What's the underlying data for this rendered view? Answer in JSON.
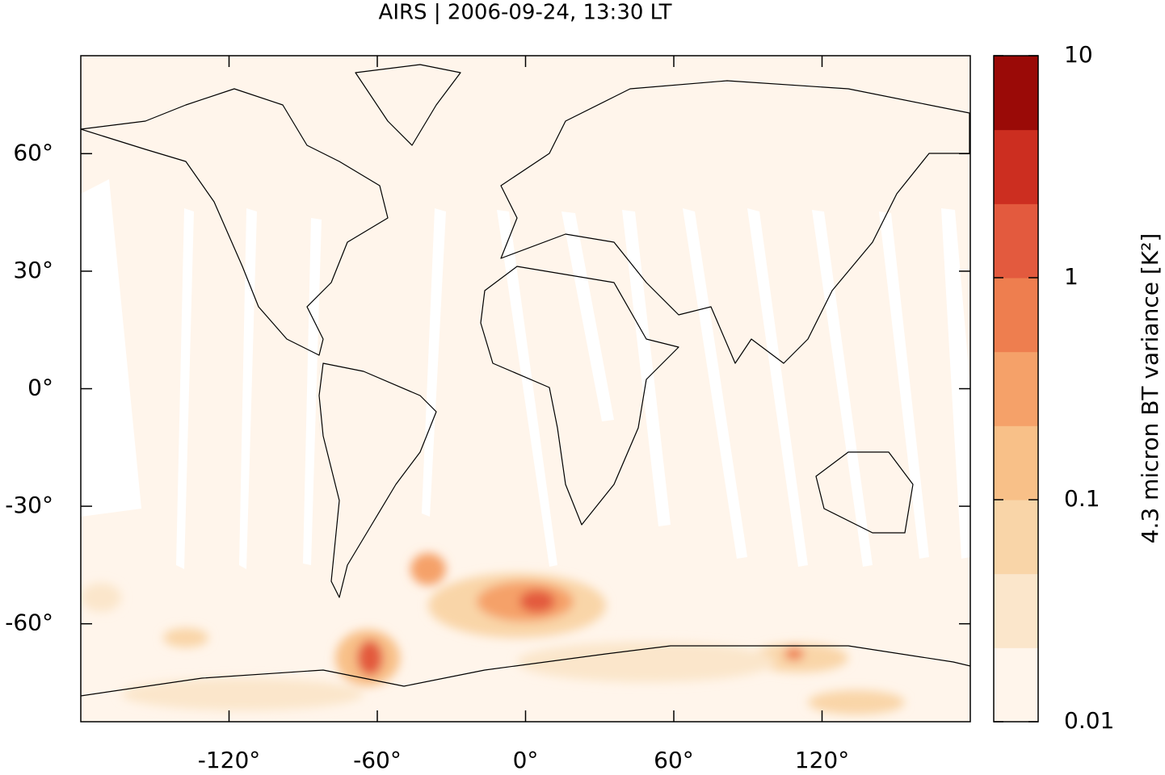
{
  "chart_data": {
    "type": "map",
    "title": "AIRS | 2006-09-24, 13:30 LT",
    "xlim": [
      -180,
      180
    ],
    "ylim": [
      -85,
      85
    ],
    "xticks": [
      {
        "value": -120,
        "label": "-120°"
      },
      {
        "value": -60,
        "label": "-60°"
      },
      {
        "value": 0,
        "label": "0°"
      },
      {
        "value": 60,
        "label": "60°"
      },
      {
        "value": 120,
        "label": "120°"
      }
    ],
    "yticks": [
      {
        "value": 60,
        "label": "60°"
      },
      {
        "value": 30,
        "label": "30°"
      },
      {
        "value": 0,
        "label": "0°"
      },
      {
        "value": -30,
        "label": "-30°"
      },
      {
        "value": -60,
        "label": "-60°"
      }
    ],
    "colorbar": {
      "label": "4.3 micron BT variance [K²]",
      "clim": [
        0.01,
        10
      ],
      "scale": "log",
      "ticks": [
        0.01,
        0.1,
        1,
        10
      ],
      "colors": [
        "#fff5eb",
        "#fbe6cb",
        "#f9d5a8",
        "#f8c088",
        "#f5a169",
        "#ee7e4f",
        "#e35a3e",
        "#cc2e20",
        "#9a0a07"
      ]
    }
  }
}
